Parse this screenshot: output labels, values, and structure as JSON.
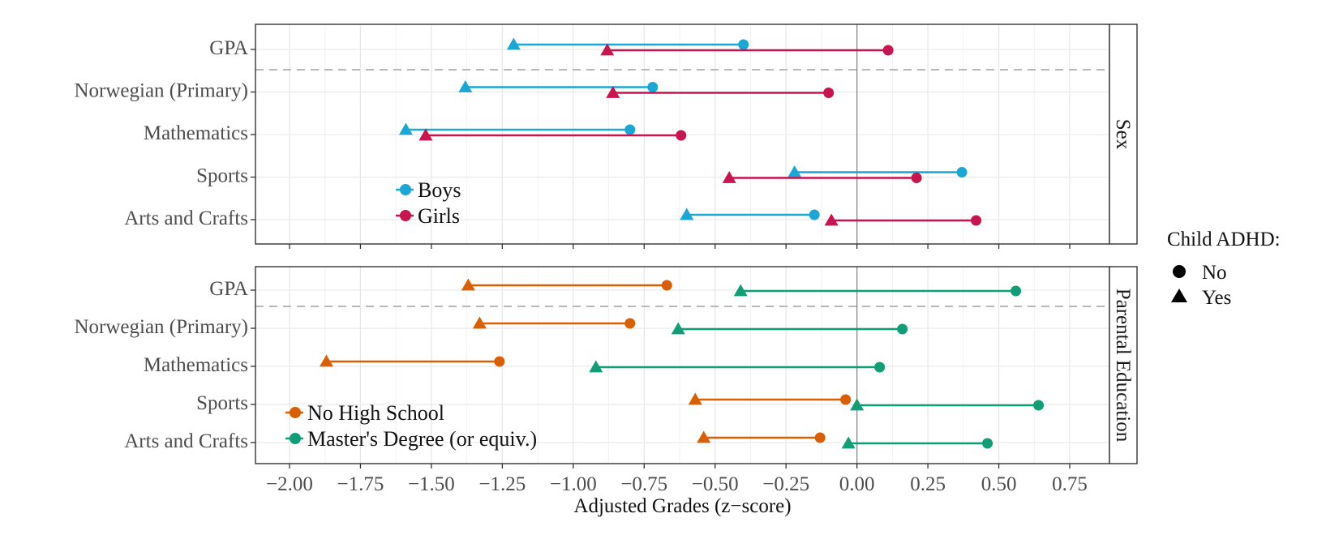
{
  "chart_data": {
    "type": "dumbbell",
    "xlabel": "Adjusted Grades (z−score)",
    "xlim": [
      -2.12,
      0.89
    ],
    "x_ticks": [
      -2.0,
      -1.75,
      -1.5,
      -1.25,
      -1.0,
      -0.75,
      -0.5,
      -0.25,
      0.0,
      0.25,
      0.5,
      0.75
    ],
    "x_tick_labels": [
      "−2.00",
      "−1.75",
      "−1.50",
      "−1.25",
      "−1.00",
      "−0.75",
      "−0.50",
      "−0.25",
      "0.00",
      "0.25",
      "0.50",
      "0.75"
    ],
    "grid": true,
    "shape_legend": {
      "title": "Child ADHD:",
      "items": [
        {
          "label": "No",
          "shape": "circle"
        },
        {
          "label": "Yes",
          "shape": "triangle"
        }
      ]
    },
    "panels": [
      {
        "strip": "Sex",
        "categories": [
          "GPA",
          "Norwegian (Primary)",
          "Mathematics",
          "Sports",
          "Arts and Crafts"
        ],
        "separator_after": "GPA",
        "legend_position": "inside-bottom-left",
        "series": [
          {
            "name": "Boys",
            "color": "#1aa7d6",
            "yes": [
              -1.21,
              -1.38,
              -1.59,
              -0.22,
              -0.6
            ],
            "no": [
              -0.4,
              -0.72,
              -0.8,
              0.37,
              -0.15
            ]
          },
          {
            "name": "Girls",
            "color": "#c8144f",
            "yes": [
              -0.88,
              -0.86,
              -1.52,
              -0.45,
              -0.09
            ],
            "no": [
              0.11,
              -0.1,
              -0.62,
              0.21,
              0.42
            ]
          }
        ]
      },
      {
        "strip": "Parental Education",
        "categories": [
          "GPA",
          "Norwegian (Primary)",
          "Mathematics",
          "Sports",
          "Arts and Crafts"
        ],
        "separator_after": "GPA",
        "legend_position": "inside-bottom-left",
        "series": [
          {
            "name": "No High School",
            "color": "#d95f02",
            "yes": [
              -1.37,
              -1.33,
              -1.87,
              -0.57,
              -0.54
            ],
            "no": [
              -0.67,
              -0.8,
              -1.26,
              -0.04,
              -0.13
            ]
          },
          {
            "name": "Master's Degree (or equiv.)",
            "color": "#109e77",
            "yes": [
              -0.41,
              -0.63,
              -0.92,
              0.0,
              -0.03
            ],
            "no": [
              0.56,
              0.16,
              0.08,
              0.64,
              0.46
            ]
          }
        ]
      }
    ]
  }
}
